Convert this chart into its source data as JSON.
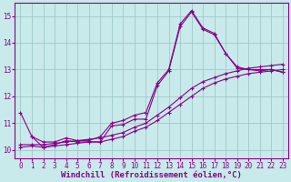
{
  "background_color": "#c8eaea",
  "grid_color": "#a0c8c8",
  "line_color": "#880088",
  "xlabel": "Windchill (Refroidissement éolien,°C)",
  "xlabel_fontsize": 6.5,
  "tick_fontsize": 5.5,
  "xlim": [
    -0.5,
    23.5
  ],
  "ylim": [
    9.7,
    15.5
  ],
  "yticks": [
    10,
    11,
    12,
    13,
    14,
    15
  ],
  "xticks": [
    0,
    1,
    2,
    3,
    4,
    5,
    6,
    7,
    8,
    9,
    10,
    11,
    12,
    13,
    14,
    15,
    16,
    17,
    18,
    19,
    20,
    21,
    22,
    23
  ],
  "series1_x": [
    0,
    1,
    2,
    3,
    4,
    5,
    6,
    7,
    8,
    9,
    10,
    11,
    12,
    13,
    14,
    15,
    16,
    17,
    18,
    19,
    20,
    21,
    22,
    23
  ],
  "series1_y": [
    11.4,
    10.5,
    10.1,
    10.2,
    10.35,
    10.3,
    10.3,
    10.3,
    10.9,
    10.95,
    11.15,
    11.15,
    12.4,
    12.95,
    14.6,
    15.15,
    14.5,
    14.3,
    13.6,
    13.05,
    13.0,
    12.95,
    13.0,
    12.9
  ],
  "series2_x": [
    0,
    1,
    2,
    3,
    4,
    5,
    6,
    7,
    8,
    9,
    10,
    11,
    12,
    13,
    14,
    15,
    16,
    17,
    18,
    19,
    20,
    21,
    22,
    23
  ],
  "series2_y": [
    10.1,
    10.15,
    10.1,
    10.15,
    10.2,
    10.25,
    10.3,
    10.3,
    10.4,
    10.5,
    10.7,
    10.85,
    11.1,
    11.4,
    11.7,
    12.0,
    12.3,
    12.5,
    12.65,
    12.75,
    12.85,
    12.9,
    12.95,
    13.0
  ],
  "series3_x": [
    0,
    1,
    2,
    3,
    4,
    5,
    6,
    7,
    8,
    9,
    10,
    11,
    12,
    13,
    14,
    15,
    16,
    17,
    18,
    19,
    20,
    21,
    22,
    23
  ],
  "series3_y": [
    10.2,
    10.2,
    10.2,
    10.25,
    10.3,
    10.35,
    10.4,
    10.45,
    10.55,
    10.65,
    10.85,
    11.0,
    11.3,
    11.6,
    11.95,
    12.3,
    12.55,
    12.7,
    12.85,
    12.95,
    13.05,
    13.1,
    13.15,
    13.2
  ],
  "series4_x": [
    1,
    2,
    3,
    4,
    5,
    6,
    7,
    8,
    9,
    10,
    11,
    12,
    13,
    14,
    15,
    16,
    17,
    18,
    19,
    20,
    21,
    22,
    23
  ],
  "series4_y": [
    10.5,
    10.3,
    10.3,
    10.45,
    10.35,
    10.35,
    10.5,
    11.0,
    11.1,
    11.3,
    11.4,
    12.5,
    13.0,
    14.7,
    15.2,
    14.55,
    14.35,
    13.6,
    13.1,
    13.0,
    13.0,
    13.0,
    12.9
  ]
}
